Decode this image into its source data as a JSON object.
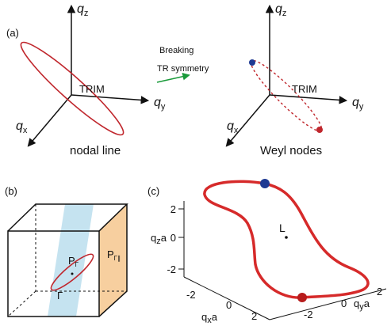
{
  "panel_a": {
    "label": "(a)",
    "before": {
      "axes": {
        "z": {
          "base": "q",
          "sub": "z"
        },
        "y": {
          "base": "q",
          "sub": "y"
        },
        "x": {
          "base": "q",
          "sub": "x"
        }
      },
      "point": "TRIM",
      "caption": "nodal line"
    },
    "transition": [
      "Breaking",
      "TR symmetry"
    ],
    "after": {
      "axes": {
        "z": {
          "base": "q",
          "sub": "z"
        },
        "y": {
          "base": "q",
          "sub": "y"
        },
        "x": {
          "base": "q",
          "sub": "x"
        }
      },
      "point": "TRIM",
      "caption": "Weyl nodes"
    }
  },
  "panel_b": {
    "label": "(b)",
    "plane_1": {
      "base": "P",
      "sub": "Γ"
    },
    "plane_2": {
      "base": "P",
      "sub": "Γ∥"
    },
    "point": "Γ"
  },
  "panel_c": {
    "label": "(c)",
    "z_axis": {
      "title": {
        "base": "q",
        "sub": "z",
        "suffix": "a"
      },
      "ticks": [
        "2",
        "0",
        "-2"
      ]
    },
    "x_axis": {
      "title": {
        "base": "q",
        "sub": "x",
        "suffix": "a"
      },
      "ticks": [
        "-2",
        "0",
        "2"
      ]
    },
    "y_axis": {
      "title": {
        "base": "q",
        "sub": "y",
        "suffix": "a"
      },
      "ticks": [
        "-2",
        "0",
        "2"
      ]
    },
    "point": "L"
  }
}
